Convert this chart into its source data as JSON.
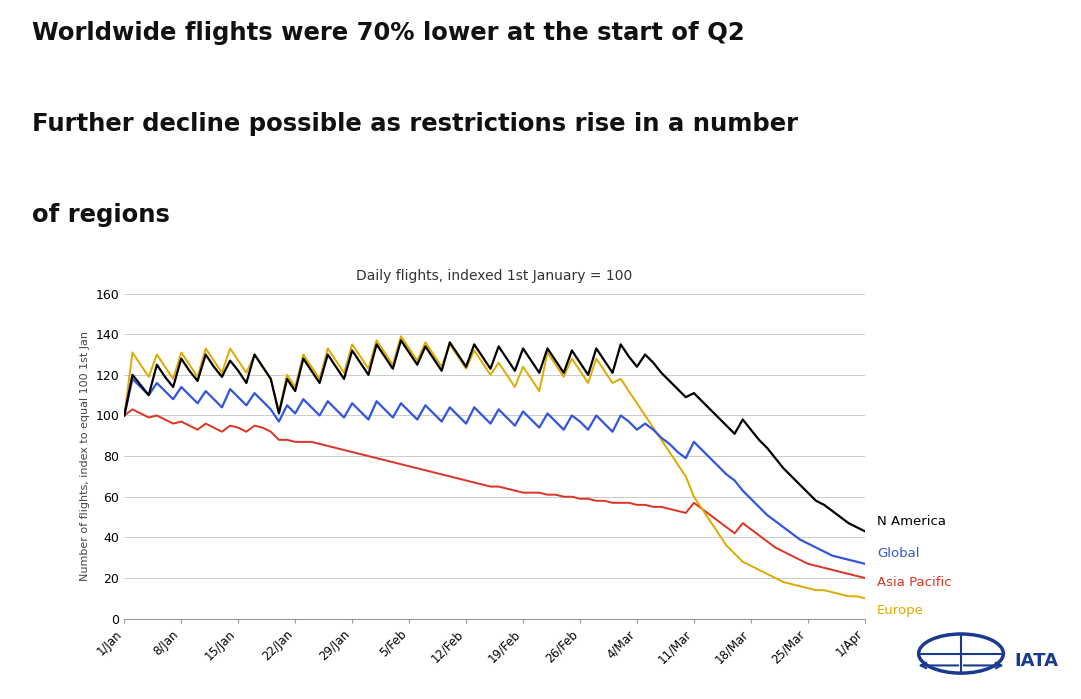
{
  "title_line1": "Worldwide flights were 70% lower at the start of Q2",
  "title_line2": "Further decline possible as restrictions rise in a number",
  "title_line3": "of regions",
  "subtitle": "Daily flights, indexed 1st January = 100",
  "ylabel": "Number of flights, index to equal 100 1st Jan",
  "ylim": [
    0,
    160
  ],
  "yticks": [
    0,
    20,
    40,
    60,
    80,
    100,
    120,
    140,
    160
  ],
  "background_color": "#ffffff",
  "colors": {
    "N America": "#000000",
    "Global": "#3355dd",
    "Asia Pacific": "#dd3322",
    "Europe": "#ddaa00"
  },
  "tick_labels": [
    "1/Jan",
    "8/Jan",
    "15/Jan",
    "22/Jan",
    "29/Jan",
    "5/Feb",
    "12/Feb",
    "19/Feb",
    "26/Feb",
    "4/Mar",
    "11/Mar",
    "18/Mar",
    "25/Mar",
    "1/Apr"
  ],
  "n_days": 92,
  "n_america": [
    100,
    120,
    115,
    110,
    125,
    119,
    114,
    128,
    122,
    117,
    130,
    124,
    119,
    127,
    122,
    116,
    130,
    124,
    118,
    101,
    118,
    112,
    128,
    122,
    116,
    130,
    124,
    118,
    132,
    126,
    120,
    135,
    129,
    123,
    137,
    131,
    125,
    134,
    128,
    122,
    136,
    130,
    124,
    135,
    129,
    123,
    134,
    128,
    122,
    133,
    127,
    121,
    133,
    127,
    121,
    132,
    126,
    120,
    133,
    127,
    121,
    135,
    129,
    124,
    130,
    126,
    121,
    117,
    113,
    109,
    111,
    107,
    103,
    99,
    95,
    91,
    98,
    93,
    88,
    84,
    79,
    74,
    70,
    66,
    62,
    58,
    56,
    53,
    50,
    47,
    45,
    43
  ],
  "global": [
    100,
    118,
    114,
    110,
    116,
    112,
    108,
    114,
    110,
    106,
    112,
    108,
    104,
    113,
    109,
    105,
    111,
    107,
    103,
    97,
    105,
    101,
    108,
    104,
    100,
    107,
    103,
    99,
    106,
    102,
    98,
    107,
    103,
    99,
    106,
    102,
    98,
    105,
    101,
    97,
    104,
    100,
    96,
    104,
    100,
    96,
    103,
    99,
    95,
    102,
    98,
    94,
    101,
    97,
    93,
    100,
    97,
    93,
    100,
    96,
    92,
    100,
    97,
    93,
    96,
    93,
    89,
    86,
    82,
    79,
    87,
    83,
    79,
    75,
    71,
    68,
    63,
    59,
    55,
    51,
    48,
    45,
    42,
    39,
    37,
    35,
    33,
    31,
    30,
    29,
    28,
    27
  ],
  "asia_pacific": [
    100,
    103,
    101,
    99,
    100,
    98,
    96,
    97,
    95,
    93,
    96,
    94,
    92,
    95,
    94,
    92,
    95,
    94,
    92,
    88,
    88,
    87,
    87,
    87,
    86,
    85,
    84,
    83,
    82,
    81,
    80,
    79,
    78,
    77,
    76,
    75,
    74,
    73,
    72,
    71,
    70,
    69,
    68,
    67,
    66,
    65,
    65,
    64,
    63,
    62,
    62,
    62,
    61,
    61,
    60,
    60,
    59,
    59,
    58,
    58,
    57,
    57,
    57,
    56,
    56,
    55,
    55,
    54,
    53,
    52,
    57,
    54,
    51,
    48,
    45,
    42,
    47,
    44,
    41,
    38,
    35,
    33,
    31,
    29,
    27,
    26,
    25,
    24,
    23,
    22,
    21,
    20
  ],
  "europe": [
    100,
    131,
    125,
    119,
    130,
    124,
    118,
    131,
    125,
    119,
    133,
    127,
    121,
    133,
    127,
    121,
    130,
    124,
    118,
    102,
    120,
    114,
    130,
    124,
    118,
    133,
    127,
    121,
    135,
    129,
    123,
    137,
    131,
    125,
    139,
    133,
    127,
    136,
    130,
    124,
    135,
    129,
    123,
    132,
    126,
    120,
    126,
    120,
    114,
    124,
    118,
    112,
    131,
    125,
    119,
    128,
    122,
    116,
    128,
    122,
    116,
    118,
    112,
    106,
    100,
    94,
    88,
    82,
    76,
    70,
    60,
    54,
    48,
    42,
    36,
    32,
    28,
    26,
    24,
    22,
    20,
    18,
    17,
    16,
    15,
    14,
    14,
    13,
    12,
    11,
    11,
    10
  ]
}
